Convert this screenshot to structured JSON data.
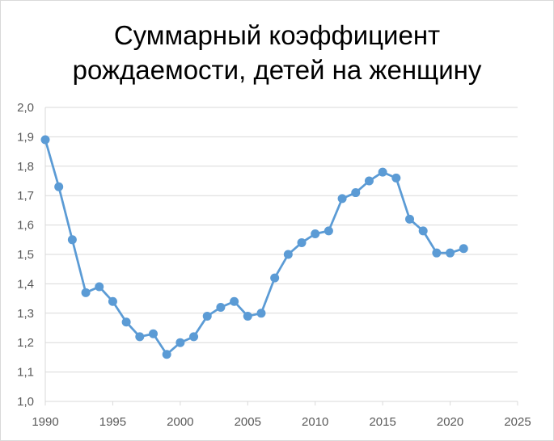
{
  "chart_data": {
    "type": "line",
    "title_line1": "Суммарный коэффициент",
    "title_line2": "рождаемости, детей на женщину",
    "xlabel": "",
    "ylabel": "",
    "xlim": [
      1990,
      2025
    ],
    "ylim": [
      1.0,
      2.0
    ],
    "x_ticks": [
      1990,
      1995,
      2000,
      2005,
      2010,
      2015,
      2020,
      2025
    ],
    "x_tick_labels": [
      "1990",
      "1995",
      "2000",
      "2005",
      "2010",
      "2015",
      "2020",
      "2025"
    ],
    "y_ticks": [
      1.0,
      1.1,
      1.2,
      1.3,
      1.4,
      1.5,
      1.6,
      1.7,
      1.8,
      1.9,
      2.0
    ],
    "y_tick_labels": [
      "1,0",
      "1,1",
      "1,2",
      "1,3",
      "1,4",
      "1,5",
      "1,6",
      "1,7",
      "1,8",
      "1,9",
      "2,0"
    ],
    "grid": "horizontal",
    "legend": "none",
    "series": [
      {
        "color": "#5b9bd5",
        "x": [
          1990,
          1991,
          1992,
          1993,
          1994,
          1995,
          1996,
          1997,
          1998,
          1999,
          2000,
          2001,
          2002,
          2003,
          2004,
          2005,
          2006,
          2007,
          2008,
          2009,
          2010,
          2011,
          2012,
          2013,
          2014,
          2015,
          2016,
          2017,
          2018,
          2019,
          2020,
          2021
        ],
        "values": [
          1.89,
          1.73,
          1.55,
          1.37,
          1.39,
          1.34,
          1.27,
          1.22,
          1.23,
          1.16,
          1.2,
          1.22,
          1.29,
          1.32,
          1.34,
          1.29,
          1.3,
          1.42,
          1.5,
          1.54,
          1.57,
          1.58,
          1.69,
          1.71,
          1.75,
          1.78,
          1.76,
          1.62,
          1.58,
          1.505,
          1.505,
          1.52
        ]
      }
    ],
    "colors": {
      "line": "#5b9bd5",
      "grid": "#d9d9d9",
      "tick_text": "#595959"
    }
  }
}
